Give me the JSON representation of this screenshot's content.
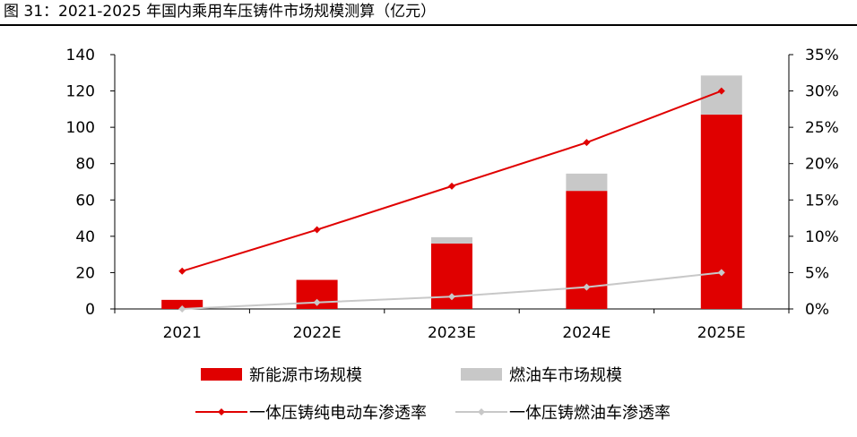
{
  "figure_title": "图 31：2021-2025 年国内乘用车压铸件市场规模测算（亿元）",
  "chart_data": {
    "type": "bar",
    "categories": [
      "2021",
      "2022E",
      "2023E",
      "2024E",
      "2025E"
    ],
    "series": [
      {
        "name": "新能源市场规模",
        "type": "bar",
        "stack": "market",
        "axis": "left",
        "color": "#e00000",
        "values": [
          5,
          16,
          36,
          65,
          107
        ]
      },
      {
        "name": "燃油车市场规模",
        "type": "bar",
        "stack": "market",
        "axis": "left",
        "color": "#c8c8c8",
        "values": [
          0,
          0,
          3.5,
          9.5,
          21.5
        ]
      },
      {
        "name": "一体压铸纯电动车渗透率",
        "type": "line",
        "axis": "right",
        "color": "#e00000",
        "values": [
          0.052,
          0.109,
          0.169,
          0.229,
          0.3
        ]
      },
      {
        "name": "一体压铸燃油车渗透率",
        "type": "line",
        "axis": "right",
        "color": "#c8c8c8",
        "values": [
          0.0,
          0.009,
          0.017,
          0.03,
          0.05
        ]
      }
    ],
    "ylim_left": [
      0,
      140
    ],
    "yticks_left": [
      "0",
      "20",
      "40",
      "60",
      "80",
      "100",
      "120",
      "140"
    ],
    "ylim_right": [
      0,
      0.35
    ],
    "yticks_right": [
      "0%",
      "5%",
      "10%",
      "15%",
      "20%",
      "25%",
      "30%",
      "35%"
    ],
    "grid": false,
    "legend_position": "bottom"
  }
}
